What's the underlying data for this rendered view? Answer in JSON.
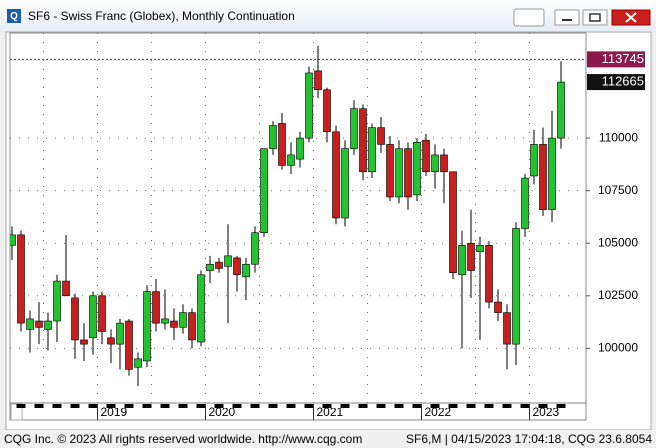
{
  "chart_data": {
    "type": "candlestick",
    "title": "SF6 - Swiss Franc (Globex), Monthly Continuation",
    "categories": [
      null,
      null,
      null,
      null,
      null,
      null,
      null,
      null,
      null,
      null,
      "2019",
      null,
      null,
      null,
      null,
      null,
      null,
      null,
      null,
      null,
      null,
      null,
      "2020",
      null,
      null,
      null,
      null,
      null,
      null,
      null,
      null,
      null,
      null,
      null,
      "2021",
      null,
      null,
      null,
      null,
      null,
      null,
      null,
      null,
      null,
      null,
      null,
      "2022",
      null,
      null,
      null,
      null,
      null,
      null,
      null,
      null,
      null,
      null,
      null,
      "2023",
      null,
      null,
      null
    ],
    "open": [
      104900,
      105400,
      100900,
      101300,
      100900,
      101300,
      103200,
      102400,
      100400,
      100500,
      102500,
      100500,
      100200,
      101300,
      99100,
      99400,
      102700,
      101200,
      101300,
      101000,
      101700,
      100300,
      103700,
      104100,
      103900,
      104300,
      103400,
      104000,
      105500,
      109500,
      110700,
      108700,
      109000,
      110000,
      113200,
      112300,
      110300,
      106200,
      109500,
      111400,
      108400,
      110500,
      109700,
      107200,
      109500,
      107300,
      109900,
      108400,
      109200,
      108400,
      103500,
      105000,
      104600,
      104900,
      102200,
      101700,
      100200,
      105700,
      108200,
      109700,
      106600,
      110000
    ],
    "high": [
      105800,
      105600,
      101800,
      102200,
      101700,
      103500,
      105400,
      102600,
      101200,
      102700,
      102700,
      100900,
      101400,
      101400,
      99800,
      103000,
      103300,
      102800,
      101900,
      102100,
      101900,
      103700,
      104400,
      104300,
      105900,
      104400,
      104300,
      105800,
      109500,
      110800,
      111200,
      109800,
      110300,
      113400,
      114400,
      112400,
      110600,
      109900,
      111800,
      111600,
      110700,
      111000,
      110100,
      109900,
      109800,
      110000,
      110200,
      109700,
      109500,
      108400,
      105600,
      106600,
      105300,
      105100,
      102800,
      102100,
      106000,
      108300,
      110400,
      110500,
      111300,
      113650
    ],
    "low": [
      104200,
      100800,
      99800,
      100200,
      99900,
      100300,
      102500,
      99500,
      99400,
      99700,
      100200,
      99300,
      99000,
      98700,
      98200,
      99100,
      100800,
      100900,
      100400,
      100700,
      100000,
      100100,
      103100,
      103600,
      101200,
      102700,
      102300,
      103600,
      105300,
      109200,
      108500,
      108300,
      108600,
      109800,
      111900,
      109800,
      105900,
      105800,
      109200,
      108000,
      108100,
      109300,
      107000,
      106900,
      106600,
      107000,
      108200,
      107600,
      106900,
      103300,
      100000,
      102400,
      100400,
      101900,
      101300,
      99000,
      99200,
      105300,
      107800,
      106300,
      106000,
      109500
    ],
    "close": [
      105400,
      101200,
      101400,
      101000,
      101300,
      103200,
      102500,
      100400,
      100200,
      102500,
      100800,
      100200,
      101200,
      99000,
      99500,
      102700,
      101200,
      101400,
      101000,
      101700,
      100400,
      103500,
      104000,
      103800,
      104400,
      103500,
      104000,
      105500,
      109500,
      110600,
      108700,
      109200,
      110000,
      113100,
      112300,
      110300,
      106200,
      109500,
      111400,
      108400,
      110500,
      109700,
      107200,
      109500,
      107200,
      109800,
      108400,
      109200,
      108400,
      103600,
      104900,
      103700,
      104900,
      102200,
      101700,
      100200,
      105700,
      108100,
      109700,
      106600,
      110000,
      112665
    ],
    "up_color": "#22c32e",
    "down_color": "#c8201e",
    "ylim": [
      97400,
      115000
    ],
    "yticks": [
      100000,
      102500,
      105000,
      107500,
      110000
    ],
    "reference_line": 113745,
    "reference_color": "#8b1a4a",
    "grid": true
  },
  "footer": {
    "left": "CQG Inc. © 2023 All rights reserved worldwide. http://www.cqg.com",
    "right": "SF6,M | 04/15/2023 17:04:18, CQG 23.6.8054"
  }
}
